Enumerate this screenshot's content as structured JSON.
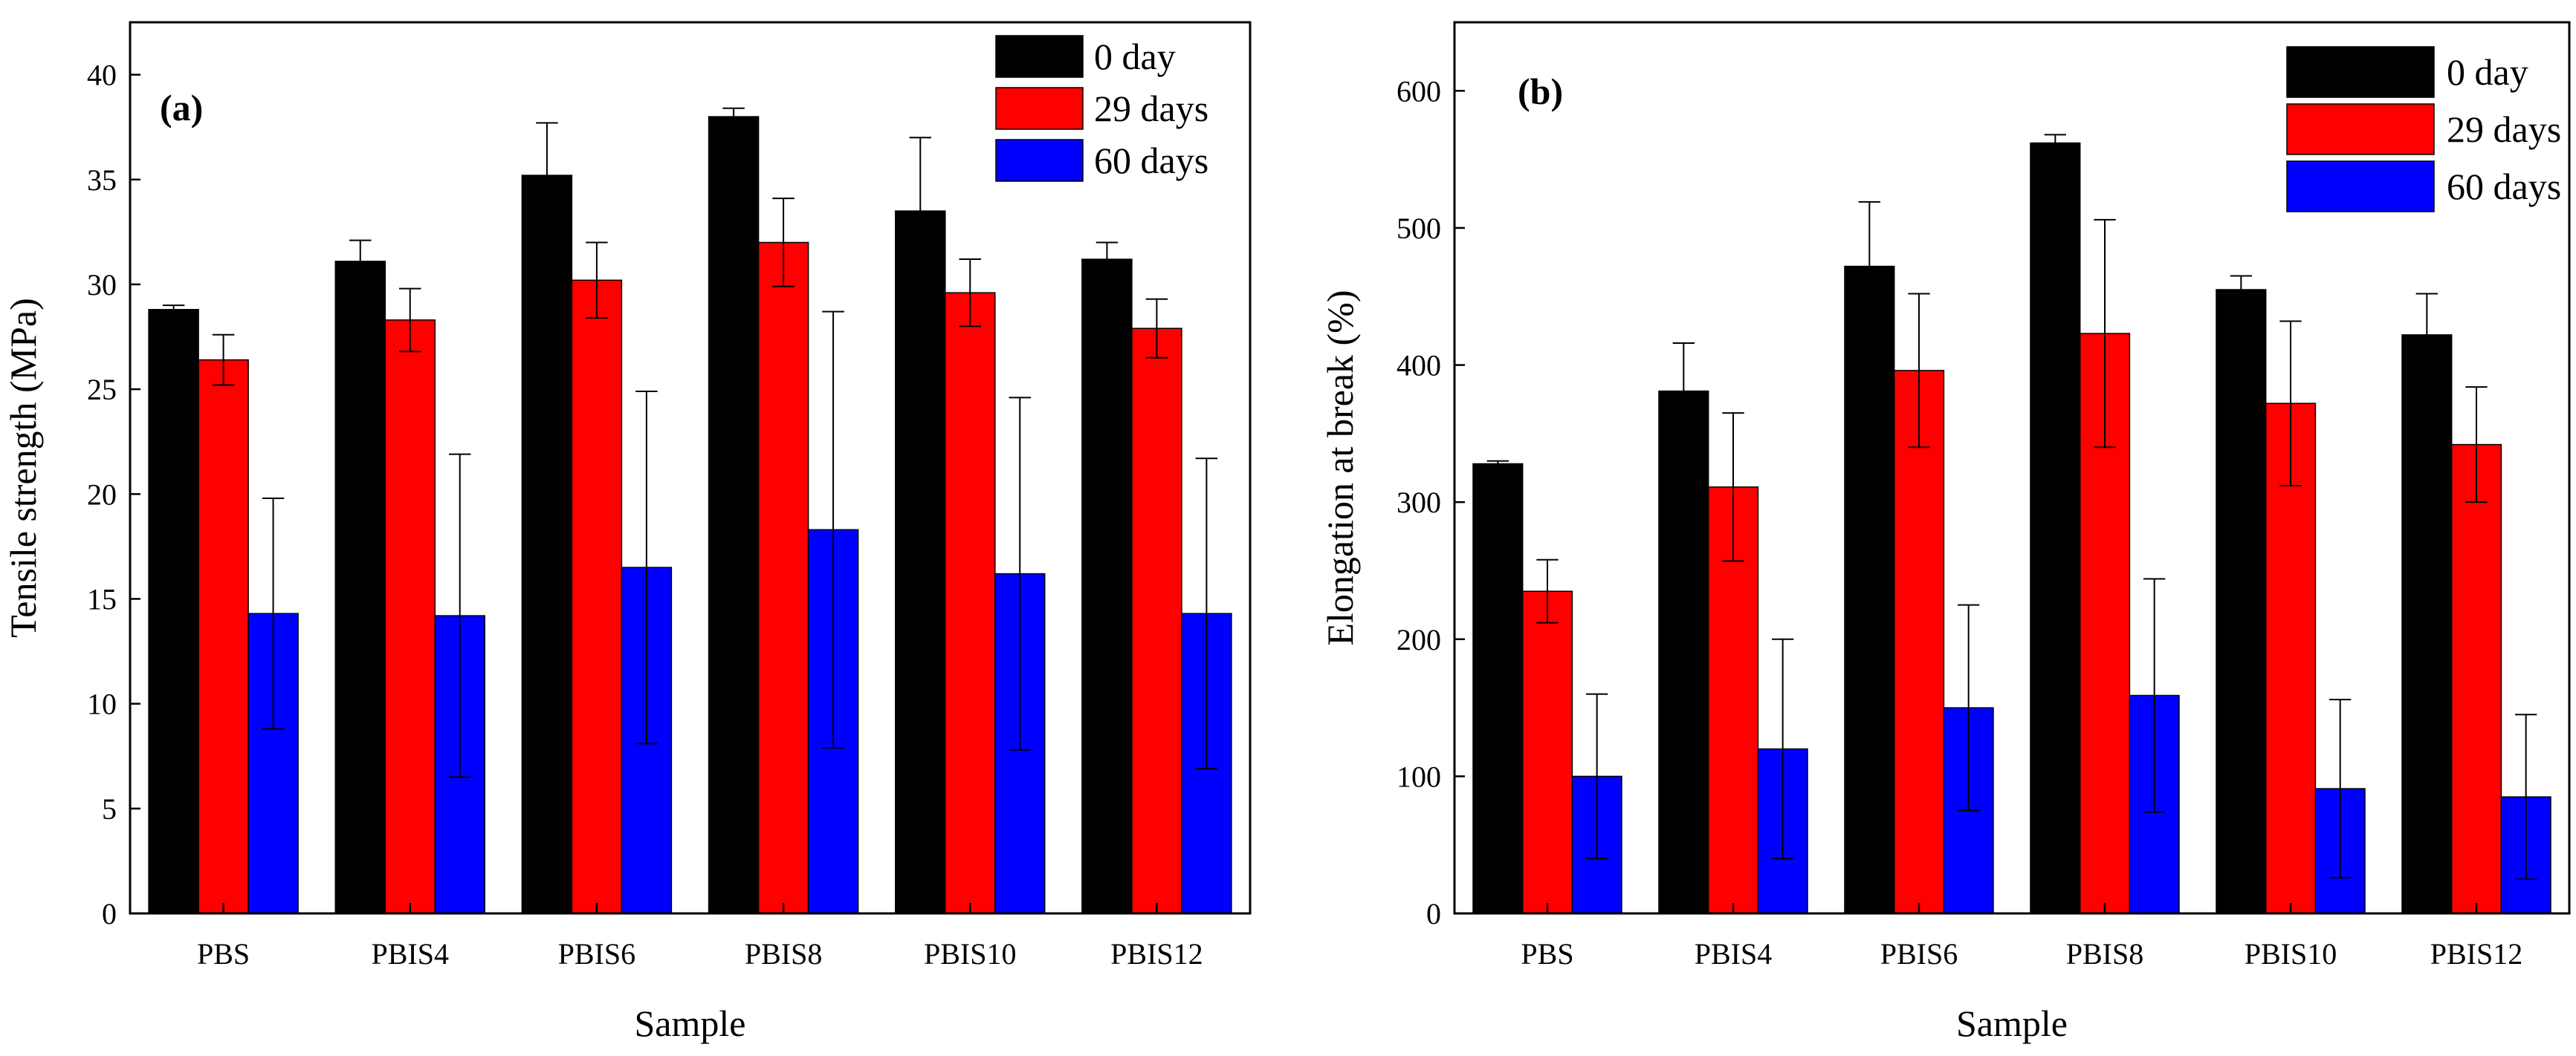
{
  "chart_data": [
    {
      "type": "bar",
      "panel_label": "(a)",
      "title": "",
      "xlabel": "Sample",
      "ylabel": "Tensile strength (MPa)",
      "categories": [
        "PBS",
        "PBIS4",
        "PBIS6",
        "PBIS8",
        "PBIS10",
        "PBIS12"
      ],
      "ylim": [
        0,
        42.5
      ],
      "yticks": [
        0,
        5,
        10,
        15,
        20,
        25,
        30,
        35,
        40
      ],
      "ytick_labels": [
        "0",
        "5",
        "10",
        "15",
        "20",
        "25",
        "30",
        "35",
        "40"
      ],
      "legend_position": "top-right",
      "series": [
        {
          "name": "0  day",
          "color": "#000000",
          "values": [
            28.8,
            31.1,
            35.2,
            38.0,
            33.5,
            31.2
          ],
          "errors": [
            0.2,
            1.0,
            2.5,
            0.4,
            3.5,
            0.8
          ]
        },
        {
          "name": "29 days",
          "color": "#ff0000",
          "values": [
            26.4,
            28.3,
            30.2,
            32.0,
            29.6,
            27.9
          ],
          "errors": [
            1.2,
            1.5,
            1.8,
            2.1,
            1.6,
            1.4
          ]
        },
        {
          "name": "60 days",
          "color": "#0000ff",
          "values": [
            14.3,
            14.2,
            16.5,
            18.3,
            16.2,
            14.3
          ],
          "errors": [
            5.5,
            7.7,
            8.4,
            10.4,
            8.4,
            7.4
          ]
        }
      ]
    },
    {
      "type": "bar",
      "panel_label": "(b)",
      "title": "",
      "xlabel": "Sample",
      "ylabel": "Elongation at break (%)",
      "categories": [
        "PBS",
        "PBIS4",
        "PBIS6",
        "PBIS8",
        "PBIS10",
        "PBIS12"
      ],
      "ylim": [
        0,
        650
      ],
      "yticks": [
        0,
        100,
        200,
        300,
        400,
        500,
        600
      ],
      "ytick_labels": [
        "0",
        "100",
        "200",
        "300",
        "400",
        "500",
        "600"
      ],
      "legend_position": "top-right",
      "series": [
        {
          "name": "0  day",
          "color": "#000000",
          "values": [
            328,
            381,
            472,
            562,
            455,
            422
          ],
          "errors": [
            2,
            35,
            47,
            6,
            10,
            30
          ]
        },
        {
          "name": "29 days",
          "color": "#ff0000",
          "values": [
            235,
            311,
            396,
            423,
            372,
            342
          ],
          "errors": [
            23,
            54,
            56,
            83,
            60,
            42
          ]
        },
        {
          "name": "60 days",
          "color": "#0000ff",
          "values": [
            100,
            120,
            150,
            159,
            91,
            85
          ],
          "errors": [
            60,
            80,
            75,
            85,
            65,
            60
          ]
        }
      ]
    }
  ]
}
